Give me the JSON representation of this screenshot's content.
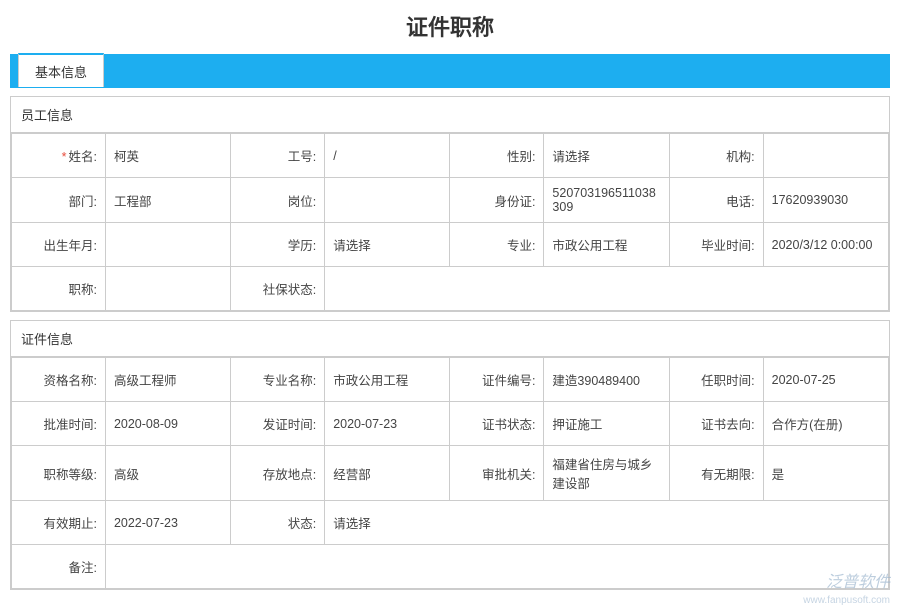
{
  "page_title": "证件职称",
  "tab_label": "基本信息",
  "employee": {
    "header": "员工信息",
    "fields": {
      "name_label": "姓名:",
      "name": "柯英",
      "empno_label": "工号:",
      "empno": "/",
      "gender_label": "性别:",
      "gender": "请选择",
      "org_label": "机构:",
      "org": "",
      "dept_label": "部门:",
      "dept": "工程部",
      "position_label": "岗位:",
      "position": "",
      "idcard_label": "身份证:",
      "idcard": "520703196511038309",
      "phone_label": "电话:",
      "phone": "17620939030",
      "birth_label": "出生年月:",
      "birth": "",
      "edu_label": "学历:",
      "edu": "请选择",
      "major_label": "专业:",
      "major": "市政公用工程",
      "gradtime_label": "毕业时间:",
      "gradtime": "2020/3/12 0:00:00",
      "title_label": "职称:",
      "title": "",
      "ss_label": "社保状态:",
      "ss": ""
    }
  },
  "cert": {
    "header": "证件信息",
    "fields": {
      "qual_label": "资格名称:",
      "qual": "高级工程师",
      "prof_label": "专业名称:",
      "prof": "市政公用工程",
      "certno_label": "证件编号:",
      "certno": "建造390489400",
      "apptime_label": "任职时间:",
      "apptime": "2020-07-25",
      "approve_label": "批准时间:",
      "approve": "2020-08-09",
      "issue_label": "发证时间:",
      "issue": "2020-07-23",
      "cstatus_label": "证书状态:",
      "cstatus": "押证施工",
      "cdest_label": "证书去向:",
      "cdest": "合作方(在册)",
      "tlevel_label": "职称等级:",
      "tlevel": "高级",
      "storage_label": "存放地点:",
      "storage": "经营部",
      "authority_label": "审批机关:",
      "authority": "福建省住房与城乡建设部",
      "nolimit_label": "有无期限:",
      "nolimit": "是",
      "expire_label": "有效期止:",
      "expire": "2022-07-23",
      "status_label": "状态:",
      "status": "请选择",
      "remark_label": "备注:"
    }
  },
  "watermark": "泛普软件",
  "watermark_url": "www.fanpusoft.com"
}
